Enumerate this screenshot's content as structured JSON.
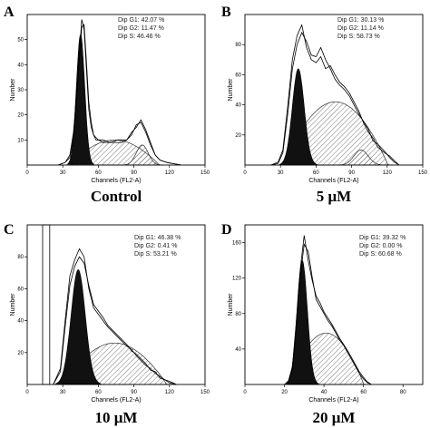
{
  "colors": {
    "ink": "#000000",
    "modeled": "#333333",
    "hatch": "#555555",
    "g1_fill": "#111111",
    "background": "#ffffff"
  },
  "chart_data": [
    {
      "type": "line",
      "panel_label": "A",
      "caption": "Control",
      "xlabel": "Channels (FL2-A)",
      "ylabel": "Number",
      "xlim": [
        0,
        150
      ],
      "ylim": [
        0,
        60
      ],
      "xticks": [
        0,
        30,
        60,
        90,
        120,
        150
      ],
      "yticks": [
        10,
        20,
        30,
        40,
        50
      ],
      "stats": [
        "Dip G1: 42.07 %",
        "Dip G2: 11.47 %",
        "Dip S: 46.46 %"
      ],
      "g1": {
        "mean": 45,
        "sd": 3.5,
        "height": 52
      },
      "g2": {
        "mean": 97,
        "sd": 5,
        "height": 8
      },
      "s": {
        "start": 36,
        "end": 115,
        "height": 10
      },
      "series": [
        {
          "x": [
            26,
            32,
            36,
            39,
            42,
            44,
            46,
            48,
            50,
            52,
            54,
            56,
            58,
            60,
            64,
            70,
            76,
            80,
            84,
            88,
            92,
            96,
            100,
            104,
            108,
            112,
            118,
            124,
            130
          ],
          "y": [
            0,
            1,
            4,
            13,
            30,
            44,
            58,
            54,
            38,
            22,
            15,
            12,
            10,
            10,
            9,
            9,
            9,
            9,
            10,
            12,
            16,
            17,
            13,
            8,
            4,
            2,
            1,
            0.5,
            0
          ]
        },
        {
          "x": [
            26,
            32,
            36,
            39,
            42,
            44,
            46,
            48,
            50,
            52,
            54,
            56,
            58,
            60,
            64,
            70,
            76,
            80,
            84,
            88,
            92,
            96,
            100,
            104,
            108,
            112,
            118,
            124,
            130
          ],
          "y": [
            0,
            1,
            3,
            11,
            27,
            42,
            55,
            56,
            41,
            25,
            17,
            12,
            11,
            10,
            10,
            9,
            10,
            10,
            10,
            13,
            15,
            18,
            14,
            9,
            4,
            2,
            1,
            0.5,
            0
          ]
        }
      ]
    },
    {
      "type": "line",
      "panel_label": "B",
      "caption": "5 μM",
      "xlabel": "Channels (FL2-A)",
      "ylabel": "Number",
      "xlim": [
        0,
        150
      ],
      "ylim": [
        0,
        100
      ],
      "xticks": [
        0,
        30,
        60,
        90,
        120,
        150
      ],
      "yticks": [
        20,
        40,
        60,
        80
      ],
      "stats": [
        "Dip G1: 30.13 %",
        "Dip G2: 11.14 %",
        "Dip S: 58.73 %"
      ],
      "g1": {
        "mean": 45,
        "sd": 5,
        "height": 64
      },
      "g2": {
        "mean": 98,
        "sd": 6,
        "height": 10
      },
      "s": {
        "start": 32,
        "end": 125,
        "height": 42
      },
      "series": [
        {
          "x": [
            22,
            28,
            32,
            36,
            40,
            44,
            48,
            52,
            56,
            60,
            64,
            68,
            72,
            76,
            80,
            84,
            88,
            92,
            96,
            100,
            104,
            108,
            112,
            118,
            122,
            126,
            130
          ],
          "y": [
            0,
            2,
            10,
            38,
            70,
            86,
            93,
            78,
            70,
            68,
            72,
            64,
            66,
            60,
            55,
            52,
            48,
            42,
            36,
            28,
            22,
            18,
            12,
            8,
            6,
            3,
            0
          ]
        },
        {
          "x": [
            22,
            28,
            32,
            36,
            40,
            44,
            48,
            52,
            56,
            60,
            64,
            68,
            72,
            76,
            80,
            84,
            88,
            92,
            96,
            100,
            104,
            108,
            112,
            118,
            122,
            126,
            130
          ],
          "y": [
            0,
            1,
            8,
            33,
            64,
            80,
            88,
            82,
            73,
            72,
            78,
            70,
            64,
            57,
            53,
            50,
            46,
            40,
            34,
            29,
            24,
            16,
            14,
            9,
            5,
            2,
            0
          ]
        }
      ]
    },
    {
      "type": "line",
      "panel_label": "C",
      "caption": "10 μM",
      "xlabel": "Channels (FL2-A)",
      "ylabel": "Number",
      "xlim": [
        0,
        150
      ],
      "ylim": [
        0,
        100
      ],
      "xticks": [
        0,
        30,
        60,
        90,
        120,
        150
      ],
      "yticks": [
        20,
        40,
        60,
        80
      ],
      "stats": [
        "Dip G1: 46.38 %",
        "Dip G2: 0.41 %",
        "Dip S: 53.21 %"
      ],
      "g1": {
        "mean": 43,
        "sd": 6,
        "height": 72
      },
      "g2": null,
      "s": {
        "start": 30,
        "end": 122,
        "height": 26
      },
      "gate": {
        "x0": 13,
        "x1": 19,
        "top": 100
      },
      "series": [
        {
          "x": [
            22,
            28,
            32,
            36,
            40,
            44,
            48,
            52,
            56,
            60,
            64,
            68,
            72,
            76,
            80,
            84,
            88,
            92,
            96,
            100,
            104,
            108,
            112,
            116,
            120,
            126
          ],
          "y": [
            0,
            10,
            40,
            68,
            78,
            85,
            80,
            60,
            48,
            44,
            40,
            36,
            33,
            30,
            27,
            24,
            22,
            18,
            15,
            12,
            10,
            7,
            5,
            3,
            2,
            0
          ]
        },
        {
          "x": [
            22,
            28,
            32,
            36,
            40,
            44,
            48,
            52,
            56,
            60,
            64,
            68,
            72,
            76,
            80,
            84,
            88,
            92,
            96,
            100,
            104,
            108,
            112,
            116,
            120,
            126
          ],
          "y": [
            0,
            8,
            36,
            62,
            74,
            80,
            76,
            62,
            50,
            46,
            42,
            37,
            34,
            31,
            28,
            25,
            21,
            19,
            16,
            13,
            9,
            8,
            4,
            3,
            1,
            0
          ]
        }
      ]
    },
    {
      "type": "line",
      "panel_label": "D",
      "caption": "20 μM",
      "xlabel": "Channels (FL2-A)",
      "ylabel": "Number",
      "xlim": [
        0,
        90
      ],
      "ylim": [
        0,
        180
      ],
      "xticks": [
        0,
        20,
        40,
        60,
        80
      ],
      "yticks": [
        40,
        80,
        120,
        160
      ],
      "stats": [
        "Dip G1: 39.32 %",
        "Dip G2: 0.00 %",
        "Dip S: 60.68 %"
      ],
      "g1": {
        "mean": 29,
        "sd": 2.6,
        "height": 140
      },
      "g2": null,
      "s": {
        "start": 22,
        "end": 62,
        "height": 58
      },
      "series": [
        {
          "x": [
            20,
            22,
            24,
            26,
            28,
            30,
            32,
            34,
            36,
            38,
            40,
            42,
            44,
            46,
            48,
            50,
            52,
            54,
            56,
            58,
            60,
            62,
            64
          ],
          "y": [
            0,
            4,
            20,
            70,
            130,
            168,
            140,
            118,
            100,
            92,
            82,
            75,
            68,
            60,
            52,
            45,
            38,
            30,
            22,
            14,
            8,
            3,
            0
          ]
        },
        {
          "x": [
            20,
            22,
            24,
            26,
            28,
            30,
            32,
            34,
            36,
            38,
            40,
            42,
            44,
            46,
            48,
            50,
            52,
            54,
            56,
            58,
            60,
            62,
            64
          ],
          "y": [
            0,
            3,
            16,
            62,
            122,
            158,
            150,
            122,
            96,
            88,
            80,
            72,
            66,
            58,
            50,
            44,
            36,
            28,
            20,
            12,
            6,
            2,
            0
          ]
        }
      ]
    }
  ]
}
